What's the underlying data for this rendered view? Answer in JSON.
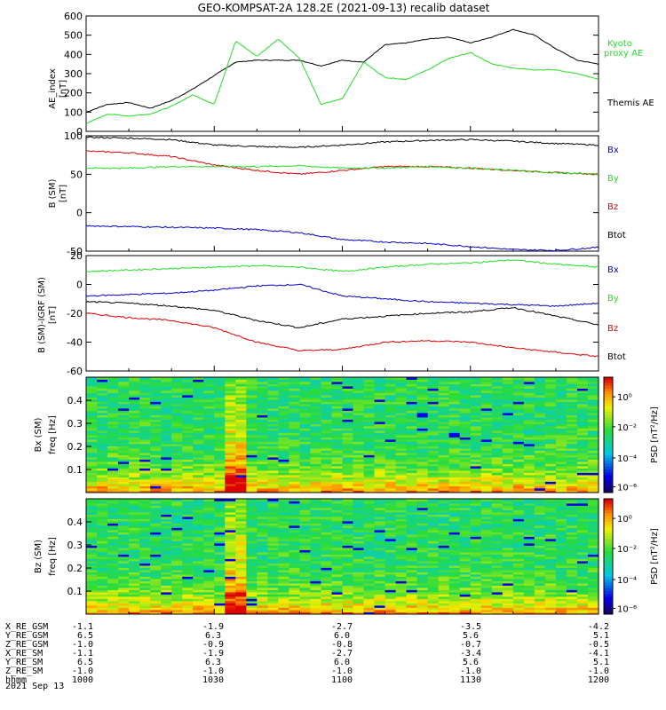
{
  "title": "GEO-KOMPSAT-2A 128.2E (2021-09-13) recalib dataset",
  "colors": {
    "black": "#000000",
    "red": "#dd0000",
    "green": "#22dd22",
    "blue": "#0000cc"
  },
  "colorbar": {
    "label": "PSD [nT²/Hz]",
    "ticks": [
      "10⁰",
      "10⁻²",
      "10⁻⁴",
      "10⁻⁶"
    ]
  },
  "chart_data": [
    {
      "type": "line",
      "ylabel": "AE index [nT]",
      "ylim": [
        0,
        600
      ],
      "yticks": [
        0,
        100,
        200,
        300,
        400,
        500,
        600
      ],
      "legend": [
        "Kyoto proxy AE",
        "Themis AE"
      ],
      "x": [
        1000,
        1005,
        1010,
        1015,
        1020,
        1025,
        1030,
        1035,
        1040,
        1045,
        1050,
        1055,
        1100,
        1105,
        1110,
        1115,
        1120,
        1125,
        1130,
        1135,
        1140,
        1145,
        1150,
        1155,
        1200
      ],
      "series": [
        {
          "name": "Themis AE",
          "color": "#000000",
          "values": [
            100,
            140,
            150,
            120,
            160,
            220,
            290,
            360,
            370,
            370,
            370,
            340,
            370,
            360,
            450,
            460,
            480,
            490,
            460,
            490,
            530,
            500,
            430,
            370,
            350
          ]
        },
        {
          "name": "Kyoto proxy AE",
          "color": "#22dd22",
          "values": [
            40,
            90,
            80,
            90,
            130,
            190,
            140,
            470,
            390,
            480,
            380,
            140,
            170,
            360,
            280,
            270,
            320,
            380,
            410,
            350,
            330,
            320,
            320,
            300,
            270
          ]
        }
      ]
    },
    {
      "type": "line",
      "ylabel": "B (SM) [nT]",
      "ylim": [
        -50,
        100
      ],
      "yticks": [
        -50,
        0,
        50,
        100
      ],
      "legend": [
        "Bx",
        "By",
        "Bz",
        "Btot"
      ],
      "x": [
        1000,
        1010,
        1020,
        1030,
        1040,
        1050,
        1100,
        1110,
        1120,
        1130,
        1140,
        1150,
        1200
      ],
      "series": [
        {
          "name": "Btot",
          "color": "#000000",
          "values": [
            98,
            97,
            95,
            88,
            86,
            85,
            88,
            92,
            94,
            95,
            93,
            90,
            88
          ]
        },
        {
          "name": "Bz",
          "color": "#dd0000",
          "values": [
            80,
            78,
            73,
            62,
            55,
            50,
            55,
            60,
            60,
            58,
            55,
            52,
            50
          ]
        },
        {
          "name": "By",
          "color": "#22dd22",
          "values": [
            58,
            58,
            60,
            60,
            60,
            61,
            58,
            58,
            60,
            58,
            55,
            52,
            50
          ]
        },
        {
          "name": "Bx",
          "color": "#0000cc",
          "values": [
            -17,
            -18,
            -19,
            -20,
            -22,
            -26,
            -35,
            -38,
            -40,
            -44,
            -48,
            -49,
            -45
          ]
        }
      ]
    },
    {
      "type": "line",
      "ylabel": "B (SM)-IGRF (SM) [nT]",
      "ylim": [
        -60,
        20
      ],
      "yticks": [
        -60,
        -40,
        -20,
        0,
        20
      ],
      "legend": [
        "Bx",
        "By",
        "Bz",
        "Btot"
      ],
      "x": [
        1000,
        1010,
        1020,
        1030,
        1040,
        1050,
        1100,
        1110,
        1120,
        1130,
        1140,
        1150,
        1200
      ],
      "series": [
        {
          "name": "Bx",
          "color": "#22dd22",
          "values": [
            9,
            10,
            11,
            12,
            13,
            12,
            9,
            12,
            14,
            15,
            17,
            14,
            12
          ]
        },
        {
          "name": "By",
          "color": "#0000cc",
          "values": [
            -8,
            -7,
            -6,
            -4,
            -1,
            0,
            -8,
            -10,
            -12,
            -13,
            -14,
            -15,
            -13
          ]
        },
        {
          "name": "Bz",
          "color": "#dd0000",
          "values": [
            -20,
            -23,
            -25,
            -30,
            -40,
            -46,
            -45,
            -40,
            -39,
            -40,
            -44,
            -47,
            -50
          ]
        },
        {
          "name": "Btot",
          "color": "#000000",
          "values": [
            -12,
            -13,
            -15,
            -18,
            -25,
            -30,
            -24,
            -22,
            -20,
            -19,
            -16,
            -22,
            -28
          ]
        }
      ]
    },
    {
      "type": "heatmap",
      "ylabel": "Bx (SM) freq [Hz]",
      "ylim": [
        0,
        0.5
      ],
      "yticks": [
        0.1,
        0.2,
        0.3,
        0.4
      ],
      "colorbar": "PSD [nT²/Hz]"
    },
    {
      "type": "heatmap",
      "ylabel": "Bz (SM) freq [Hz]",
      "ylim": [
        0,
        0.5
      ],
      "yticks": [
        0.1,
        0.2,
        0.3,
        0.4
      ],
      "colorbar": "PSD [nT²/Hz]"
    }
  ],
  "xtable": {
    "rows": [
      {
        "label": "X_RE_GSM",
        "values": [
          "-1.1",
          "-1.9",
          "-2.7",
          "-3.5",
          "-4.2"
        ]
      },
      {
        "label": "Y_RE_GSM",
        "values": [
          "6.5",
          "6.3",
          "6.0",
          "5.6",
          "5.1"
        ]
      },
      {
        "label": "Z_RE_GSM",
        "values": [
          "-1.0",
          "-0.9",
          "-0.8",
          "-0.7",
          "-0.5"
        ]
      },
      {
        "label": "X_RE_SM",
        "values": [
          "-1.1",
          "-1.9",
          "-2.7",
          "-3.4",
          "-4.1"
        ]
      },
      {
        "label": "Y_RE_SM",
        "values": [
          "6.5",
          "6.3",
          "6.0",
          "5.6",
          "5.1"
        ]
      },
      {
        "label": "Z_RE_SM",
        "values": [
          "-1.0",
          "-1.0",
          "-1.0",
          "-1.0",
          "-1.0"
        ]
      },
      {
        "label": "hhmm",
        "values": [
          "1000",
          "1030",
          "1100",
          "1130",
          "1200"
        ]
      }
    ],
    "date": "2021 Sep 13"
  }
}
